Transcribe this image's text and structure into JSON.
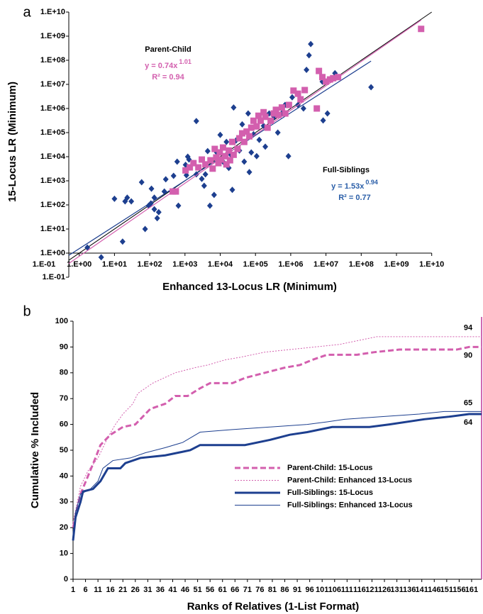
{
  "chart_data": [
    {
      "type": "scatter",
      "panel_label": "a",
      "log_scale": true,
      "x_label": "Enhanced 13-Locus LR (Minimum)",
      "y_label": "15-Locus LR (Minimum)",
      "xlim": [
        0.1,
        10000000000
      ],
      "ylim": [
        0.1,
        10000000000
      ],
      "x_axis_crossing": 1,
      "identity_line": true,
      "xticks": [
        {
          "value": 0.1,
          "label": "1.E-01"
        },
        {
          "value": 1,
          "label": "1.E+00"
        },
        {
          "value": 10,
          "label": "1.E+01"
        },
        {
          "value": 100,
          "label": "1.E+02"
        },
        {
          "value": 1000,
          "label": "1.E+03"
        },
        {
          "value": 10000,
          "label": "1.E+04"
        },
        {
          "value": 100000,
          "label": "1.E+05"
        },
        {
          "value": 1000000,
          "label": "1.E+06"
        },
        {
          "value": 10000000,
          "label": "1.E+07"
        },
        {
          "value": 100000000,
          "label": "1.E+08"
        },
        {
          "value": 1000000000,
          "label": "1.E+09"
        },
        {
          "value": 10000000000,
          "label": "1.E+10"
        }
      ],
      "yticks": [
        {
          "value": 0.1,
          "label": "1.E-01"
        },
        {
          "value": 1,
          "label": "1.E+00"
        },
        {
          "value": 10,
          "label": "1.E+01"
        },
        {
          "value": 100,
          "label": "1.E+02"
        },
        {
          "value": 1000,
          "label": "1.E+03"
        },
        {
          "value": 10000,
          "label": "1.E+04"
        },
        {
          "value": 100000,
          "label": "1.E+05"
        },
        {
          "value": 1000000,
          "label": "1.E+06"
        },
        {
          "value": 10000000,
          "label": "1.E+07"
        },
        {
          "value": 100000000,
          "label": "1.E+08"
        },
        {
          "value": 1000000000,
          "label": "1.E+09"
        },
        {
          "value": 10000000000,
          "label": "1.E+10"
        }
      ],
      "series": [
        {
          "name": "Full-Siblings",
          "color": "#1d3f8f",
          "text_color": "#2a5ea8",
          "marker": "diamond",
          "x": [
            1.7,
            4.2,
            10,
            20,
            23,
            30,
            17,
            59,
            74,
            93,
            108,
            112,
            135,
            135,
            163,
            180,
            260,
            285,
            475,
            600,
            650,
            1040,
            1100,
            1200,
            1300,
            2100,
            2100,
            3000,
            3500,
            3800,
            4400,
            5100,
            6700,
            8000,
            10000,
            12000,
            15000,
            17500,
            20000,
            22000,
            24000,
            28000,
            35000,
            42000,
            48000,
            62000,
            67000,
            76000,
            88000,
            108000,
            128000,
            170000,
            190000,
            245000,
            340000,
            430000,
            550000,
            690000,
            860000,
            1100000,
            1600000,
            2300000,
            2800000,
            3300000,
            3700000,
            7900000,
            8300000,
            11000000,
            18000000,
            190000000
          ],
          "values": [
            1.7,
            0.67,
            180,
            140,
            200,
            140,
            3,
            870,
            10,
            93,
            115,
            470,
            200,
            66,
            28,
            50,
            360,
            1150,
            1600,
            6200,
            93,
            4600,
            1700,
            10000,
            7600,
            300000,
            1850,
            1200,
            620,
            1850,
            17000,
            93,
            260,
            15000,
            80000,
            6200,
            41000,
            3400,
            12000,
            420,
            1100000,
            47000,
            18000,
            220000,
            6200,
            620000,
            2300,
            15000,
            85000,
            10500,
            50000,
            190000,
            26000,
            620000,
            450000,
            100000,
            620000,
            1400000,
            10500,
            2900000,
            1400000,
            1000000,
            40000000,
            160000000,
            470000000,
            13000000,
            320000,
            620000,
            29000000,
            7600000
          ],
          "fit": {
            "lhs": "y = ",
            "coefficient": 1.53,
            "variable": "x",
            "exponent": 0.94,
            "r2_label": "R² = ",
            "r2": 0.77
          }
        },
        {
          "name": "Parent-Child",
          "color": "#d35fae",
          "text_color": "#d35fae",
          "marker": "square",
          "x": [
            450,
            550,
            1040,
            1370,
            1740,
            2400,
            3000,
            3800,
            5300,
            6100,
            7000,
            7700,
            8900,
            9700,
            10700,
            12000,
            14000,
            15000,
            17500,
            19000,
            22000,
            24000,
            31000,
            35000,
            42000,
            48000,
            56000,
            67000,
            76000,
            88000,
            108000,
            122000,
            140000,
            170000,
            190000,
            220000,
            270000,
            330000,
            380000,
            450000,
            560000,
            700000,
            890000,
            1200000,
            1600000,
            1900000,
            2500000,
            5500000,
            6300000,
            7900000,
            10000000,
            13000000,
            16000000,
            22000000,
            5000000000
          ],
          "values": [
            360,
            360,
            2700,
            3600,
            5400,
            3600,
            7600,
            4800,
            7100,
            3200,
            21000,
            9300,
            5400,
            15000,
            7600,
            24000,
            10500,
            4800,
            18000,
            7100,
            41000,
            12000,
            21000,
            58000,
            93000,
            41000,
            110000,
            70000,
            160000,
            310000,
            180000,
            500000,
            310000,
            700000,
            450000,
            160000,
            310000,
            620000,
            880000,
            540000,
            1100000,
            620000,
            1400000,
            5500000,
            4100000,
            2400000,
            5800000,
            1000000,
            36000000,
            20000000,
            13000000,
            16000000,
            18000000,
            20000000,
            2000000000
          ],
          "fit": {
            "lhs": "y = ",
            "coefficient": 0.74,
            "variable": "x",
            "exponent": 1.01,
            "r2_label": "R² = ",
            "r2": 0.94
          }
        }
      ]
    },
    {
      "type": "line",
      "panel_label": "b",
      "x_label": "Ranks of Relatives (1-List Format)",
      "y_label": "Cumulative % Included",
      "xlim": [
        1,
        165
      ],
      "ylim": [
        0,
        100
      ],
      "xticks": [
        1,
        6,
        11,
        16,
        21,
        26,
        31,
        36,
        41,
        46,
        51,
        56,
        61,
        66,
        71,
        76,
        81,
        86,
        91,
        96,
        101,
        106,
        111,
        116,
        121,
        126,
        131,
        136,
        141,
        146,
        151,
        156,
        161
      ],
      "yticks": [
        0,
        10,
        20,
        30,
        40,
        50,
        60,
        70,
        80,
        90,
        100
      ],
      "legend": "center",
      "series": [
        {
          "name": "Parent-Child: 15-Locus",
          "color": "#d35fae",
          "style": "dashed",
          "line_width": 3,
          "x": [
            1,
            4,
            7,
            10,
            12,
            16,
            21,
            26,
            28,
            32,
            38,
            42,
            47,
            52,
            56,
            65,
            70,
            78,
            86,
            92,
            97,
            103,
            115,
            122,
            132,
            155,
            160,
            165
          ],
          "values": [
            20,
            33,
            40,
            47,
            52,
            56,
            59,
            60,
            62,
            66,
            68,
            71,
            71,
            74,
            76,
            76,
            78,
            80,
            82,
            83,
            85,
            87,
            87,
            88,
            89,
            89,
            90,
            90
          ]
        },
        {
          "name": "Parent-Child: Enhanced 13-Locus",
          "color": "#d35fae",
          "style": "dotted",
          "line_width": 1,
          "x": [
            1,
            4,
            7,
            11,
            15,
            18,
            21,
            25,
            27,
            33,
            42,
            50,
            55,
            62,
            68,
            78,
            88,
            98,
            108,
            118,
            123,
            165
          ],
          "values": [
            22,
            36,
            42,
            47,
            55,
            60,
            64,
            68,
            72,
            76,
            80,
            82,
            83,
            85,
            86,
            88,
            89,
            90,
            91,
            93,
            94,
            94
          ]
        },
        {
          "name": "Full-Siblings: 15-Locus",
          "color": "#1d3f8f",
          "style": "solid",
          "line_width": 3,
          "x": [
            1,
            2,
            4,
            5,
            9,
            12,
            15,
            20,
            22,
            28,
            38,
            48,
            52,
            70,
            80,
            88,
            95,
            105,
            120,
            128,
            142,
            152,
            160,
            165
          ],
          "values": [
            15,
            24,
            30,
            34,
            35,
            38,
            43,
            43,
            45,
            47,
            48,
            50,
            52,
            52,
            54,
            56,
            57,
            59,
            59,
            60,
            62,
            63,
            64,
            64
          ]
        },
        {
          "name": "Full-Siblings: Enhanced 13-Locus",
          "color": "#1d3f8f",
          "style": "solid",
          "line_width": 1,
          "x": [
            1,
            2,
            4,
            8,
            11,
            13,
            17,
            24,
            30,
            38,
            45,
            52,
            65,
            80,
            95,
            103,
            110,
            125,
            140,
            150,
            165
          ],
          "values": [
            18,
            26,
            33,
            35,
            38,
            43,
            46,
            47,
            49,
            51,
            53,
            57,
            58,
            59,
            60,
            61,
            62,
            63,
            64,
            65,
            65
          ]
        }
      ]
    }
  ]
}
